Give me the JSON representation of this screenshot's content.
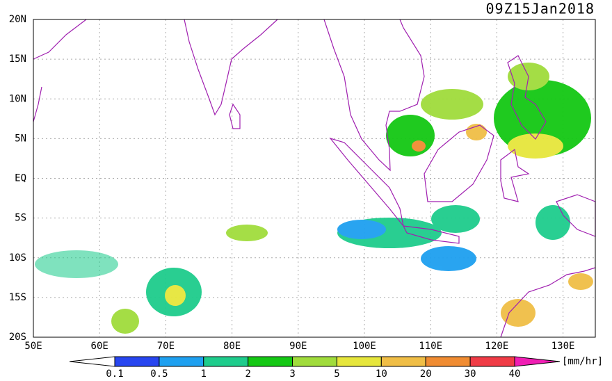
{
  "map": {
    "title": "09Z15Jan2018",
    "lat_labels": [
      "20N",
      "15N",
      "10N",
      "5N",
      "EQ",
      "5S",
      "10S",
      "15S",
      "20S"
    ],
    "lon_labels": [
      "50E",
      "60E",
      "70E",
      "80E",
      "90E",
      "100E",
      "110E",
      "120E",
      "130E"
    ],
    "colorbar": {
      "labels": [
        0.1,
        0.5,
        1,
        2,
        3,
        5,
        10,
        20,
        30,
        40
      ],
      "colors": [
        "#ffffff",
        "#2846f0",
        "#1ea0f0",
        "#1ecc8c",
        "#14c814",
        "#a0dc3c",
        "#e6e63c",
        "#f0be46",
        "#f08c32",
        "#f03c46",
        "#f01eb4"
      ],
      "unit": "[mm/hr]"
    }
  }
}
